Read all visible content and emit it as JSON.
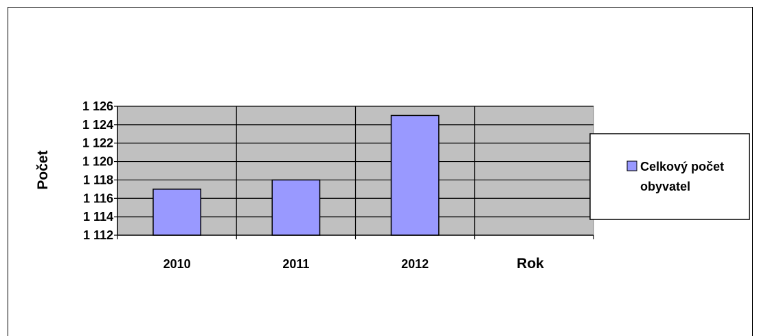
{
  "chart_data": {
    "type": "bar",
    "title": "",
    "xlabel": "Rok",
    "ylabel": "Počet",
    "categories": [
      "2010",
      "2011",
      "2012",
      ""
    ],
    "series": [
      {
        "name": "Celkový počet obyvatel",
        "values": [
          1117,
          1118,
          1125,
          null
        ]
      }
    ],
    "ylim": [
      1112,
      1126
    ],
    "ytick_step": 2,
    "ytick_labels": [
      "1 112",
      "1 114",
      "1 116",
      "1 118",
      "1 120",
      "1 122",
      "1 124",
      "1 126"
    ],
    "grid": true,
    "legend_position": "right",
    "legend_lines": [
      "Celkový počet",
      "obyvatel"
    ],
    "colors": {
      "bar_fill": "#9999FF",
      "bar_stroke": "#000000",
      "plot_background": "#C0C0C0",
      "grid": "#000000"
    }
  }
}
